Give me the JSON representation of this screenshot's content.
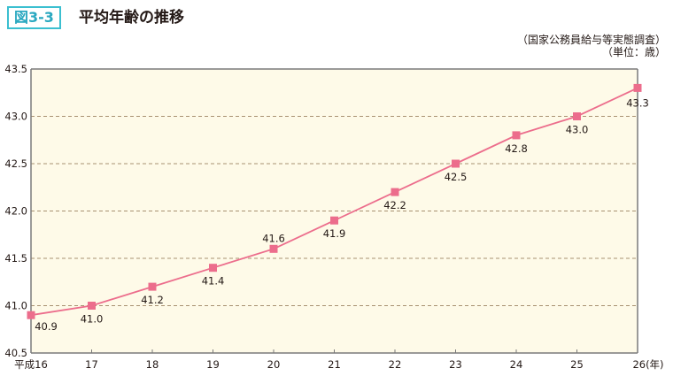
{
  "header": {
    "figure_number": "図3-3",
    "title": "平均年齢の推移"
  },
  "source_note": {
    "line1": "（国家公務員給与等実態調査）",
    "line2": "（単位：歳）"
  },
  "colors": {
    "badge": "#3bbfd0",
    "plot_background": "#fefae8",
    "line": "#ec6d8c",
    "marker": "#ec6d8c",
    "gridline": "#a89172",
    "axis": "#7a7a7a"
  },
  "chart_data": {
    "type": "line",
    "title": "平均年齢の推移",
    "xlabel": "(年)",
    "ylabel": "歳",
    "categories": [
      "平成16",
      "17",
      "18",
      "19",
      "20",
      "21",
      "22",
      "23",
      "24",
      "25",
      "26"
    ],
    "series": [
      {
        "name": "平均年齢",
        "values": [
          40.9,
          41.0,
          41.2,
          41.4,
          41.6,
          41.9,
          42.2,
          42.5,
          42.8,
          43.0,
          43.3
        ]
      }
    ],
    "data_labels": [
      "40.9",
      "41.0",
      "41.2",
      "41.4",
      "41.6",
      "41.9",
      "42.2",
      "42.5",
      "42.8",
      "43.0",
      "43.3"
    ],
    "y_ticks": [
      "40.5",
      "41.0",
      "41.5",
      "42.0",
      "42.5",
      "43.0",
      "43.5"
    ],
    "ylim": [
      40.5,
      43.5
    ],
    "grid": "horizontal dashed",
    "x_unit_label": "(年)",
    "legend": "none"
  }
}
